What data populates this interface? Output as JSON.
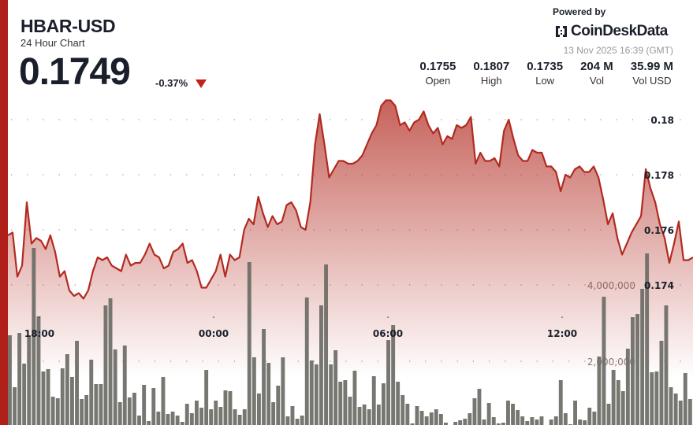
{
  "header": {
    "symbol": "HBAR-USD",
    "subtitle": "24 Hour Chart",
    "price": "0.1749",
    "change": "-0.37%",
    "change_direction": "down",
    "down_color": "#c0231c"
  },
  "branding": {
    "powered_by": "Powered by",
    "name": "CoinDeskData",
    "timestamp": "13 Nov 2025 16:39 (GMT)"
  },
  "stats": [
    {
      "value": "0.1755",
      "label": "Open"
    },
    {
      "value": "0.1807",
      "label": "High"
    },
    {
      "value": "0.1735",
      "label": "Low"
    },
    {
      "value": "204 M",
      "label": "Vol"
    },
    {
      "value": "35.99 M",
      "label": "Vol USD"
    }
  ],
  "chart_data": {
    "type": "line",
    "title": "",
    "line_color": "#b22a20",
    "bar_color": "#6b6b66",
    "x_ticks": [
      "18:00",
      "00:00",
      "06:00",
      "12:00"
    ],
    "y_ticks": [
      "0.18",
      "0.178",
      "0.176",
      "0.174"
    ],
    "ylim": [
      0.1728,
      0.1808
    ],
    "volume_ticks": [
      "4,000,000",
      "2,000,000"
    ],
    "grid": "dotted",
    "series": [
      {
        "type": "line",
        "values": [
          0.1758,
          0.1759,
          0.1743,
          0.1747,
          0.177,
          0.1755,
          0.1757,
          0.1756,
          0.1753,
          0.1758,
          0.1752,
          0.1743,
          0.1745,
          0.1738,
          0.1736,
          0.1737,
          0.1735,
          0.1738,
          0.1745,
          0.175,
          0.1749,
          0.175,
          0.1747,
          0.1746,
          0.1745,
          0.1751,
          0.1747,
          0.1748,
          0.1748,
          0.1751,
          0.1755,
          0.1751,
          0.175,
          0.1746,
          0.1747,
          0.1752,
          0.1753,
          0.1755,
          0.1748,
          0.1749,
          0.1745,
          0.1739,
          0.1739,
          0.1742,
          0.1745,
          0.1751,
          0.1743,
          0.1751,
          0.1749,
          0.175,
          0.176,
          0.1764,
          0.1762,
          0.1772,
          0.1766,
          0.1761,
          0.1765,
          0.1762,
          0.1763,
          0.1769,
          0.177,
          0.1767,
          0.1761,
          0.176,
          0.177,
          0.1791,
          0.1802,
          0.1791,
          0.1779,
          0.1782,
          0.1785,
          0.1785,
          0.1784,
          0.1784,
          0.1785,
          0.1787,
          0.1791,
          0.1795,
          0.1798,
          0.1805,
          0.1807,
          0.1807,
          0.1805,
          0.1798,
          0.1799,
          0.1796,
          0.1799,
          0.18,
          0.1803,
          0.1798,
          0.1795,
          0.1797,
          0.1791,
          0.1794,
          0.1793,
          0.1798,
          0.1797,
          0.1798,
          0.1801,
          0.1784,
          0.1788,
          0.1785,
          0.1785,
          0.1786,
          0.1783,
          0.1796,
          0.18,
          0.1793,
          0.1787,
          0.1785,
          0.1785,
          0.1789,
          0.1788,
          0.1788,
          0.1783,
          0.1783,
          0.1781,
          0.1774,
          0.178,
          0.1779,
          0.1782,
          0.1783,
          0.1781,
          0.1781,
          0.1783,
          0.1779,
          0.1771,
          0.1762,
          0.1766,
          0.1757,
          0.1751,
          0.1755,
          0.1759,
          0.1762,
          0.1765,
          0.1782,
          0.1775,
          0.177,
          0.1762,
          0.1757,
          0.1748,
          0.1755,
          0.1763,
          0.1749,
          0.1749,
          0.175
        ]
      },
      {
        "type": "bar",
        "values": [
          2680000,
          1320000,
          2742000,
          1938000,
          2680000,
          4969000,
          3175000,
          1732000,
          1794000,
          1072000,
          1031000,
          1814000,
          2186000,
          1588000,
          2536000,
          1010000,
          1113000,
          2041000,
          1402000,
          1402000,
          3464000,
          3649000,
          2309000,
          928000,
          2412000,
          1052000,
          1175000,
          577000,
          1381000,
          433000,
          1299000,
          680000,
          1588000,
          619000,
          680000,
          577000,
          412000,
          887000,
          639000,
          969000,
          784000,
          1773000,
          742000,
          969000,
          804000,
          1237000,
          1216000,
          742000,
          598000,
          742000,
          4598000,
          2103000,
          1155000,
          2845000,
          1959000,
          928000,
          1361000,
          2103000,
          557000,
          825000,
          495000,
          577000,
          3670000,
          2021000,
          1918000,
          3464000,
          4536000,
          1918000,
          2289000,
          1464000,
          1505000,
          1072000,
          1753000,
          804000,
          866000,
          742000,
          1608000,
          866000,
          1423000,
          2557000,
          2948000,
          1464000,
          1113000,
          887000,
          371000,
          825000,
          701000,
          557000,
          660000,
          742000,
          619000,
          392000,
          330000,
          412000,
          454000,
          495000,
          639000,
          1031000,
          1278000,
          474000,
          907000,
          536000,
          371000,
          392000,
          969000,
          887000,
          722000,
          557000,
          433000,
          536000,
          474000,
          557000,
          330000,
          474000,
          557000,
          1505000,
          639000,
          351000,
          969000,
          474000,
          454000,
          784000,
          680000,
          2124000,
          3691000,
          887000,
          1773000,
          1505000,
          1216000,
          2330000,
          3155000,
          3237000,
          3897000,
          4825000,
          1711000,
          1732000,
          2536000,
          3464000,
          1320000,
          1155000,
          969000,
          1691000,
          1010000
        ]
      }
    ]
  }
}
